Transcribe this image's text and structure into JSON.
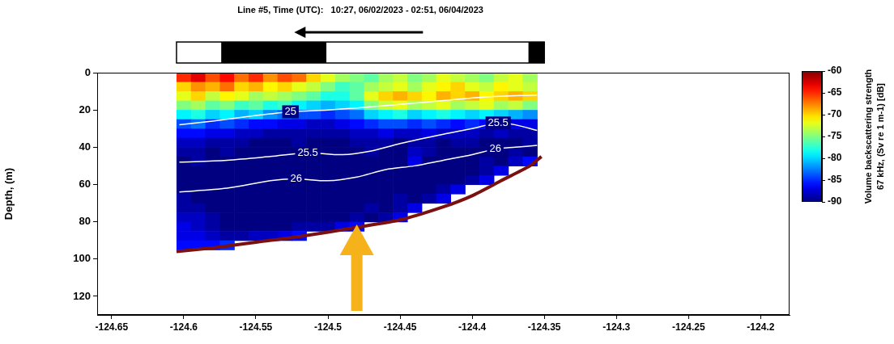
{
  "chart_data": {
    "type": "heatmap",
    "title": "Line #5, Time (UTC):   10:27, 06/02/2023 - 02:51, 06/04/2023",
    "y_label": "Depth, (m)",
    "xlim": [
      -124.66,
      -124.18
    ],
    "xticks": [
      -124.65,
      -124.6,
      -124.55,
      -124.5,
      -124.45,
      -124.4,
      -124.35,
      -124.3,
      -124.25,
      -124.2
    ],
    "ylim": [
      0,
      130
    ],
    "yticks": [
      0,
      20,
      40,
      60,
      80,
      100,
      120
    ],
    "grid": false,
    "x_edges": [
      -124.605,
      -124.595,
      -124.585,
      -124.575,
      -124.565,
      -124.555,
      -124.545,
      -124.535,
      -124.525,
      -124.515,
      -124.505,
      -124.495,
      -124.485,
      -124.475,
      -124.465,
      -124.455,
      -124.445,
      -124.435,
      -124.425,
      -124.415,
      -124.405,
      -124.395,
      -124.385,
      -124.375,
      -124.365,
      -124.355
    ],
    "depth_edges": [
      0,
      5,
      10,
      15,
      20,
      25,
      30,
      35,
      40,
      45,
      50,
      55,
      60,
      65,
      70,
      75,
      80,
      85,
      90,
      95
    ],
    "cells": [
      [
        -65,
        -63,
        -66,
        -64,
        -67,
        -65,
        -68,
        -66,
        -67,
        -70,
        -72,
        -74,
        -75,
        -76,
        -74,
        -73,
        -75,
        -74,
        -72,
        -73,
        -74,
        -75,
        -73,
        -72,
        -74
      ],
      [
        -70,
        -68,
        -69,
        -67,
        -70,
        -69,
        -71,
        -70,
        -72,
        -73,
        -75,
        -77,
        -76,
        -74,
        -73,
        -72,
        -74,
        -72,
        -71,
        -70,
        -72,
        -73,
        -71,
        -72,
        -73
      ],
      [
        -72,
        -70,
        -73,
        -71,
        -72,
        -74,
        -73,
        -74,
        -75,
        -76,
        -78,
        -78,
        -76,
        -72,
        -70,
        -69,
        -70,
        -71,
        -69,
        -70,
        -69,
        -71,
        -70,
        -69,
        -70
      ],
      [
        -75,
        -74,
        -76,
        -75,
        -77,
        -76,
        -78,
        -77,
        -79,
        -80,
        -81,
        -80,
        -79,
        -75,
        -73,
        -72,
        -74,
        -73,
        -72,
        -74,
        -73,
        -72,
        -74,
        -73,
        -75
      ],
      [
        -79,
        -78,
        -80,
        -79,
        -81,
        -80,
        -82,
        -83,
        -84,
        -84,
        -85,
        -84,
        -83,
        -80,
        -79,
        -78,
        -80,
        -79,
        -78,
        -79,
        -80,
        -79,
        -80,
        -81,
        -82
      ],
      [
        -84,
        -83,
        -85,
        -84,
        -85,
        -86,
        -86,
        -87,
        -87,
        -88,
        -88,
        -87,
        -86,
        -85,
        -84,
        -84,
        -85,
        -84,
        -85,
        -86,
        -85,
        -86,
        -86,
        -87,
        -87
      ],
      [
        -86,
        -86,
        -87,
        -87,
        -88,
        -88,
        -89,
        -89,
        -89,
        -89,
        -89,
        -89,
        -88,
        -88,
        -87,
        -88,
        -88,
        -87,
        -88,
        -88,
        -88,
        -89,
        -88,
        -89,
        -89
      ],
      [
        -88,
        -88,
        -89,
        -89,
        -89,
        -90,
        -90,
        -90,
        -89,
        -90,
        -90,
        -90,
        -89,
        -89,
        -89,
        -90,
        -89,
        -89,
        -90,
        -89,
        -89,
        -90,
        -90,
        -90,
        -89
      ],
      [
        -89,
        -89,
        -90,
        -89,
        -90,
        -90,
        -90,
        -90,
        -90,
        -90,
        -90,
        -90,
        -90,
        -89,
        -90,
        -90,
        -88,
        -89,
        -90,
        -90,
        -90,
        -90,
        -90,
        -89,
        -90
      ],
      [
        -90,
        -89,
        -90,
        -90,
        -90,
        -90,
        -90,
        -90,
        -90,
        -90,
        -90,
        -90,
        -90,
        -90,
        -90,
        -90,
        -87,
        -90,
        -90,
        -90,
        -90,
        -89,
        -90,
        -88,
        -86
      ],
      [
        -90,
        -90,
        -90,
        -90,
        -90,
        -90,
        -90,
        -90,
        -90,
        -90,
        -90,
        -90,
        -90,
        -90,
        -90,
        -90,
        -90,
        -90,
        -90,
        -90,
        -90,
        -89,
        -87,
        null,
        null
      ],
      [
        -90,
        -90,
        -90,
        -90,
        -90,
        -90,
        -90,
        -90,
        -90,
        -90,
        -90,
        -90,
        -90,
        -90,
        -90,
        -90,
        -90,
        -90,
        -90,
        -90,
        -89,
        -87,
        null,
        null,
        null
      ],
      [
        -90,
        -90,
        -90,
        -90,
        -90,
        -90,
        -90,
        -90,
        -90,
        -90,
        -90,
        -90,
        -90,
        -90,
        -90,
        -90,
        -90,
        -90,
        -89,
        -87,
        null,
        null,
        null,
        null,
        null
      ],
      [
        -89,
        -90,
        -90,
        -90,
        -90,
        -90,
        -90,
        -90,
        -90,
        -90,
        -90,
        -90,
        -90,
        -90,
        -90,
        -89,
        -90,
        -89,
        -87,
        null,
        null,
        null,
        null,
        null,
        null
      ],
      [
        -89,
        -89,
        -90,
        -90,
        -90,
        -90,
        -90,
        -90,
        -90,
        -90,
        -90,
        -90,
        -90,
        -89,
        -90,
        -89,
        -87,
        null,
        null,
        null,
        null,
        null,
        null,
        null,
        null
      ],
      [
        -88,
        -88,
        -89,
        -90,
        -90,
        -90,
        -90,
        -90,
        -90,
        -90,
        -90,
        -90,
        -89,
        -90,
        -89,
        -87,
        null,
        null,
        null,
        null,
        null,
        null,
        null,
        null,
        null
      ],
      [
        -87,
        -88,
        -89,
        -90,
        -90,
        -90,
        -90,
        -90,
        -89,
        -89,
        -89,
        -87,
        -86,
        null,
        null,
        null,
        null,
        null,
        null,
        null,
        null,
        null,
        null,
        null,
        null
      ],
      [
        -87,
        -87,
        -88,
        -89,
        -89,
        -88,
        -88,
        -87,
        -86,
        null,
        null,
        null,
        null,
        null,
        null,
        null,
        null,
        null,
        null,
        null,
        null,
        null,
        null,
        null,
        null
      ],
      [
        -86,
        -86,
        -86,
        -85,
        null,
        null,
        null,
        null,
        null,
        null,
        null,
        null,
        null,
        null,
        null,
        null,
        null,
        null,
        null,
        null,
        null,
        null,
        null,
        null,
        null
      ]
    ],
    "colorbar": {
      "label": [
        "Volume backscattering strength",
        "67 kHz, (Sv re 1 m-1) [dB]"
      ],
      "range": [
        -90,
        -60
      ],
      "ticks": [
        -90,
        -85,
        -80,
        -75,
        -70,
        -65,
        -60
      ]
    },
    "contours": [
      {
        "level": 25,
        "x": [
          -124.603,
          -124.58,
          -124.55,
          -124.526,
          -124.5,
          -124.48,
          -124.45,
          -124.42,
          -124.39,
          -124.355
        ],
        "y": [
          28,
          26,
          23,
          21,
          20,
          19,
          17,
          15,
          13,
          12
        ],
        "label_x": [
          -124.526
        ],
        "label_y": [
          21
        ]
      },
      {
        "level": 25.5,
        "x": [
          -124.603,
          -124.57,
          -124.54,
          -124.514,
          -124.49,
          -124.47,
          -124.45,
          -124.42,
          -124.4,
          -124.382,
          -124.37,
          -124.355
        ],
        "y": [
          48,
          47,
          45,
          43,
          44,
          42,
          38,
          33,
          30,
          27,
          28,
          31
        ],
        "label_x": [
          -124.514,
          -124.382
        ],
        "label_y": [
          43,
          27
        ]
      },
      {
        "level": 26,
        "x": [
          -124.603,
          -124.57,
          -124.54,
          -124.522,
          -124.5,
          -124.48,
          -124.46,
          -124.44,
          -124.42,
          -124.4,
          -124.384,
          -124.37,
          -124.355
        ],
        "y": [
          64,
          62,
          58,
          57,
          58,
          56,
          52,
          50,
          47,
          44,
          41,
          40,
          39
        ],
        "label_x": [
          -124.522,
          -124.384
        ],
        "label_y": [
          57,
          41
        ]
      }
    ],
    "seafloor": {
      "x": [
        -124.605,
        -124.58,
        -124.55,
        -124.52,
        -124.48,
        -124.45,
        -124.42,
        -124.4,
        -124.38,
        -124.36,
        -124.352
      ],
      "y": [
        96,
        94,
        91,
        88,
        83,
        79,
        72,
        66,
        58,
        50,
        45
      ],
      "color": "#7a1010"
    },
    "time_bar": [
      {
        "start": -124.605,
        "end": -124.574,
        "color": "#ffffff"
      },
      {
        "start": -124.574,
        "end": -124.501,
        "color": "#000000"
      },
      {
        "start": -124.501,
        "end": -124.361,
        "color": "#ffffff"
      },
      {
        "start": -124.361,
        "end": -124.35,
        "color": "#000000"
      }
    ],
    "arrow_x": -124.48
  }
}
